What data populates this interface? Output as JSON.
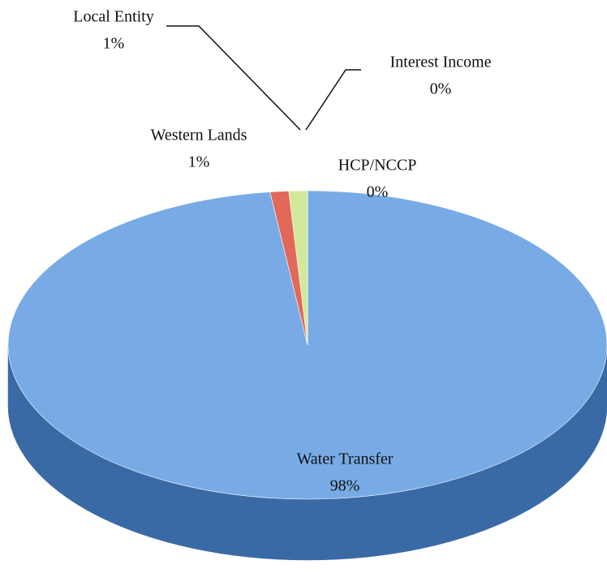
{
  "chart_data": {
    "type": "pie",
    "categories": [
      "HCP/NCCP",
      "Water Transfer",
      "Western Lands",
      "Local Entity",
      "Interest Income"
    ],
    "values": [
      0,
      98,
      1,
      1,
      0
    ],
    "value_labels": [
      "0%",
      "98%",
      "1%",
      "1%",
      "0%"
    ],
    "colors": [
      "#b4a4d6",
      "#78abe6",
      "#e2685a",
      "#d2e89a",
      "#a6daea"
    ],
    "side_colors": [
      "#7a6aa0",
      "#3a6aa6",
      "#9c362c",
      "#94ac5c",
      "#6aa0b2"
    ]
  }
}
